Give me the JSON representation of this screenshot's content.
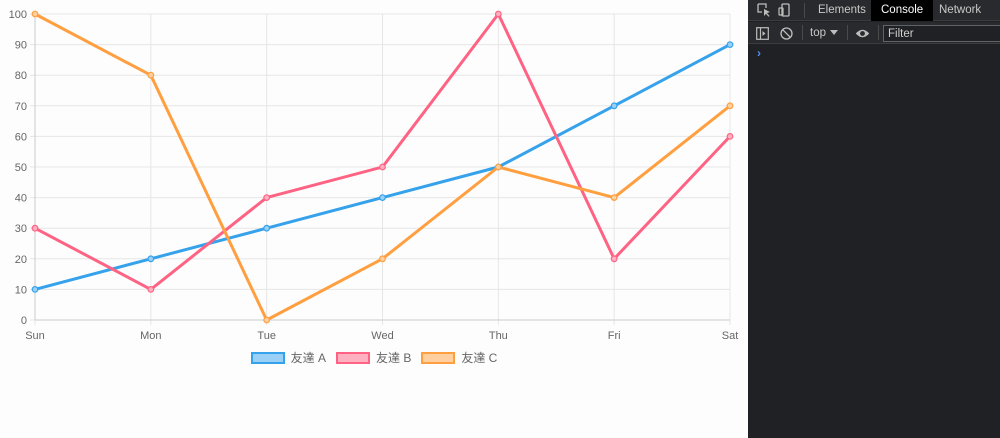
{
  "chart_data": {
    "type": "line",
    "categories": [
      "Sun",
      "Mon",
      "Tue",
      "Wed",
      "Thu",
      "Fri",
      "Sat"
    ],
    "series": [
      {
        "name": "友達 A",
        "values": [
          10,
          20,
          30,
          40,
          50,
          70,
          90
        ],
        "color": "#36a2eb",
        "fill": "#9ad0f5"
      },
      {
        "name": "友達 B",
        "values": [
          30,
          10,
          40,
          50,
          100,
          20,
          60
        ],
        "color": "#ff6384",
        "fill": "#ffb1c1"
      },
      {
        "name": "友達 C",
        "values": [
          100,
          80,
          0,
          20,
          50,
          40,
          70
        ],
        "color": "#ff9f40",
        "fill": "#ffcf9f"
      }
    ],
    "yticks": [
      "0",
      "10",
      "20",
      "30",
      "40",
      "50",
      "60",
      "70",
      "80",
      "90",
      "100"
    ],
    "ylim": [
      0,
      100
    ],
    "grid": true,
    "legend_position": "bottom"
  },
  "devtools": {
    "tabs": [
      {
        "label": "Elements",
        "active": false
      },
      {
        "label": "Console",
        "active": true
      },
      {
        "label": "Network",
        "active": false
      }
    ],
    "context": "top",
    "filter_placeholder": "Filter",
    "prompt": "›",
    "icons": {
      "inspect": "inspect-element-icon",
      "device": "device-toolbar-icon",
      "sidebar": "console-sidebar-icon",
      "clear": "clear-console-icon",
      "eye": "live-expression-icon"
    }
  }
}
